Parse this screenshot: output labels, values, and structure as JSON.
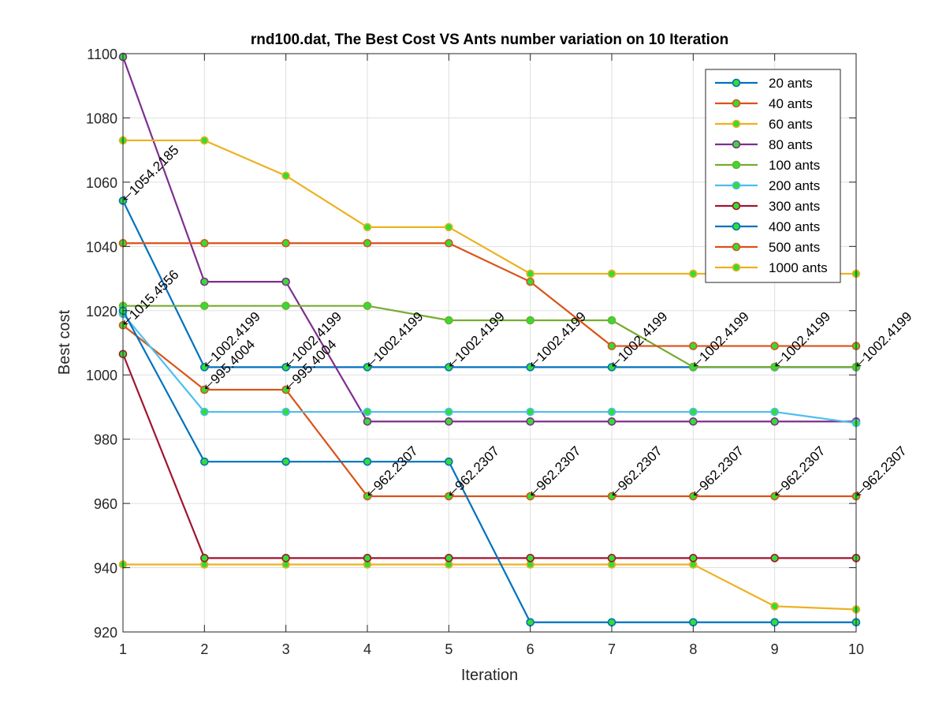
{
  "chart_data": {
    "type": "line",
    "title": "rnd100.dat, The Best Cost  VS Ants number variation on 10 Iteration",
    "xlabel": "Iteration",
    "ylabel": "Best cost",
    "xlim": [
      1,
      10
    ],
    "ylim": [
      920,
      1100
    ],
    "x_ticks": [
      "1",
      "2",
      "3",
      "4",
      "5",
      "6",
      "7",
      "8",
      "9",
      "10"
    ],
    "y_ticks": [
      "920",
      "940",
      "960",
      "980",
      "1000",
      "1020",
      "1040",
      "1060",
      "1080",
      "1100"
    ],
    "grid": true,
    "legend_position": "top-right",
    "marker_fill": "#33dd33",
    "x": [
      1,
      2,
      3,
      4,
      5,
      6,
      7,
      8,
      9,
      10
    ],
    "series": [
      {
        "name": "20 ants",
        "color": "#0072bd",
        "values": [
          1054.2185,
          1002.4199,
          1002.4199,
          1002.4199,
          1002.4199,
          1002.4199,
          1002.4199,
          1002.4199,
          1002.4199,
          1002.4199
        ]
      },
      {
        "name": "40 ants",
        "color": "#d95319",
        "values": [
          1015.4556,
          995.4004,
          995.4004,
          962.2307,
          962.2307,
          962.2307,
          962.2307,
          962.2307,
          962.2307,
          962.2307
        ]
      },
      {
        "name": "60 ants",
        "color": "#edb120",
        "values": [
          941,
          941,
          941,
          941,
          941,
          941,
          941,
          941,
          928,
          927
        ]
      },
      {
        "name": "80 ants",
        "color": "#7e2f8e",
        "values": [
          1099,
          1029,
          1029,
          985.5,
          985.5,
          985.5,
          985.5,
          985.5,
          985.5,
          985.5
        ]
      },
      {
        "name": "100 ants",
        "color": "#77ac30",
        "values": [
          1021.5,
          1021.5,
          1021.5,
          1021.5,
          1017,
          1017,
          1017,
          1002.5,
          1002.5,
          1002.5
        ]
      },
      {
        "name": "200 ants",
        "color": "#4dbeee",
        "values": [
          1019,
          988.5,
          988.5,
          988.5,
          988.5,
          988.5,
          988.5,
          988.5,
          988.5,
          985
        ]
      },
      {
        "name": "300 ants",
        "color": "#a2142f",
        "values": [
          1006.5,
          943,
          943,
          943,
          943,
          943,
          943,
          943,
          943,
          943
        ]
      },
      {
        "name": "400 ants",
        "color": "#0072bd",
        "values": [
          1020,
          973,
          973,
          973,
          973,
          923,
          923,
          923,
          923,
          923
        ]
      },
      {
        "name": "500 ants",
        "color": "#d95319",
        "values": [
          1041,
          1041,
          1041,
          1041,
          1041,
          1029,
          1009,
          1009,
          1009,
          1009
        ]
      },
      {
        "name": "1000 ants",
        "color": "#edb120",
        "values": [
          1073,
          1073,
          1062,
          1046,
          1046,
          1031.5,
          1031.5,
          1031.5,
          1031.5,
          1031.5
        ]
      }
    ],
    "annotations": [
      {
        "text": "1054.2185",
        "x": 1,
        "y": 1054.2185
      },
      {
        "text": "1015.4556",
        "x": 1,
        "y": 1015.4556
      },
      {
        "text": "1002.4199",
        "x": 2,
        "y": 1002.4199
      },
      {
        "text": "1002.4199",
        "x": 3,
        "y": 1002.4199
      },
      {
        "text": "1002.4199",
        "x": 4,
        "y": 1002.4199
      },
      {
        "text": "1002.4199",
        "x": 5,
        "y": 1002.4199
      },
      {
        "text": "1002.4199",
        "x": 6,
        "y": 1002.4199
      },
      {
        "text": "1002.4199",
        "x": 7,
        "y": 1002.4199
      },
      {
        "text": "1002.4199",
        "x": 8,
        "y": 1002.4199
      },
      {
        "text": "1002.4199",
        "x": 9,
        "y": 1002.4199
      },
      {
        "text": "1002.4199",
        "x": 10,
        "y": 1002.4199
      },
      {
        "text": "995.4004",
        "x": 2,
        "y": 995.4004
      },
      {
        "text": "995.4004",
        "x": 3,
        "y": 995.4004
      },
      {
        "text": "962.2307",
        "x": 4,
        "y": 962.2307
      },
      {
        "text": "962.2307",
        "x": 5,
        "y": 962.2307
      },
      {
        "text": "962.2307",
        "x": 6,
        "y": 962.2307
      },
      {
        "text": "962.2307",
        "x": 7,
        "y": 962.2307
      },
      {
        "text": "962.2307",
        "x": 8,
        "y": 962.2307
      },
      {
        "text": "962.2307",
        "x": 9,
        "y": 962.2307
      },
      {
        "text": "962.2307",
        "x": 10,
        "y": 962.2307
      }
    ]
  }
}
